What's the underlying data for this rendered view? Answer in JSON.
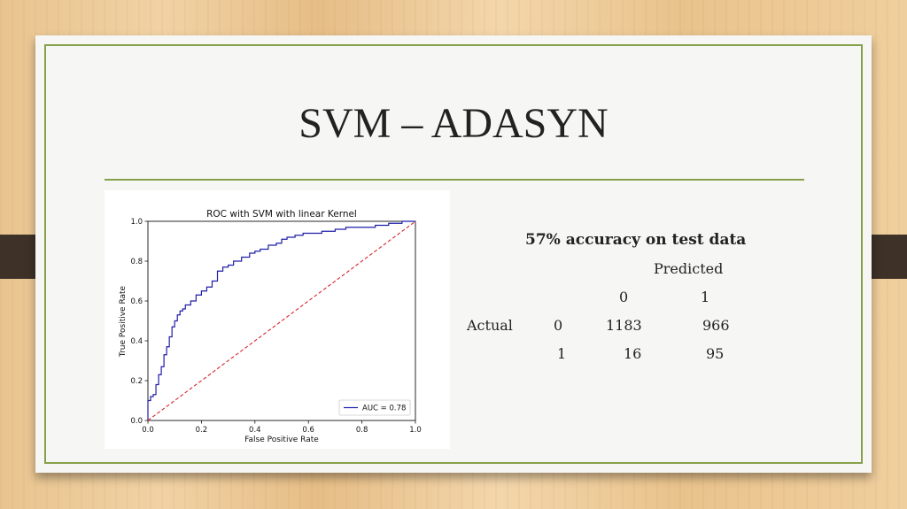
{
  "slide": {
    "title": "SVM – ADASYN"
  },
  "results": {
    "accuracy_text": "57% accuracy on test data",
    "predicted_label": "Predicted",
    "actual_label": "Actual",
    "col_labels": [
      "0",
      "1"
    ],
    "row_labels": [
      "0",
      "1"
    ],
    "matrix": [
      [
        "1183",
        "966"
      ],
      [
        "16",
        "95"
      ]
    ]
  },
  "colors": {
    "accent": "#86a04a",
    "roc_line": "#1f1fa8",
    "diagonal": "#d62728"
  },
  "chart_data": {
    "type": "line",
    "title": "ROC with SVM with linear Kernel",
    "xlabel": "False Positive Rate",
    "ylabel": "True Positive Rate",
    "xlim": [
      0,
      1
    ],
    "ylim": [
      0,
      1
    ],
    "xticks": [
      "0.0",
      "0.2",
      "0.4",
      "0.6",
      "0.8",
      "1.0"
    ],
    "yticks": [
      "0.0",
      "0.2",
      "0.4",
      "0.6",
      "0.8",
      "1.0"
    ],
    "legend_position": "bottom-right",
    "series": [
      {
        "name": "AUC = 0.78",
        "style": "solid",
        "color": "#1f1fa8",
        "x": [
          0,
          0.0,
          0.01,
          0.02,
          0.03,
          0.04,
          0.05,
          0.06,
          0.07,
          0.08,
          0.09,
          0.1,
          0.11,
          0.12,
          0.13,
          0.14,
          0.16,
          0.18,
          0.2,
          0.22,
          0.24,
          0.26,
          0.28,
          0.3,
          0.32,
          0.35,
          0.38,
          0.4,
          0.42,
          0.45,
          0.48,
          0.5,
          0.52,
          0.55,
          0.58,
          0.6,
          0.65,
          0.7,
          0.74,
          0.8,
          0.85,
          0.9,
          0.95,
          0.97,
          1.0
        ],
        "y": [
          0,
          0.05,
          0.1,
          0.12,
          0.13,
          0.18,
          0.23,
          0.27,
          0.33,
          0.37,
          0.42,
          0.47,
          0.5,
          0.53,
          0.55,
          0.56,
          0.58,
          0.6,
          0.63,
          0.65,
          0.67,
          0.7,
          0.75,
          0.77,
          0.78,
          0.8,
          0.82,
          0.84,
          0.85,
          0.86,
          0.88,
          0.89,
          0.91,
          0.92,
          0.93,
          0.94,
          0.94,
          0.95,
          0.96,
          0.97,
          0.97,
          0.98,
          0.99,
          1.0,
          1.0
        ]
      },
      {
        "name": "",
        "style": "dashed",
        "color": "#d62728",
        "x": [
          0,
          1
        ],
        "y": [
          0,
          1
        ]
      }
    ]
  }
}
